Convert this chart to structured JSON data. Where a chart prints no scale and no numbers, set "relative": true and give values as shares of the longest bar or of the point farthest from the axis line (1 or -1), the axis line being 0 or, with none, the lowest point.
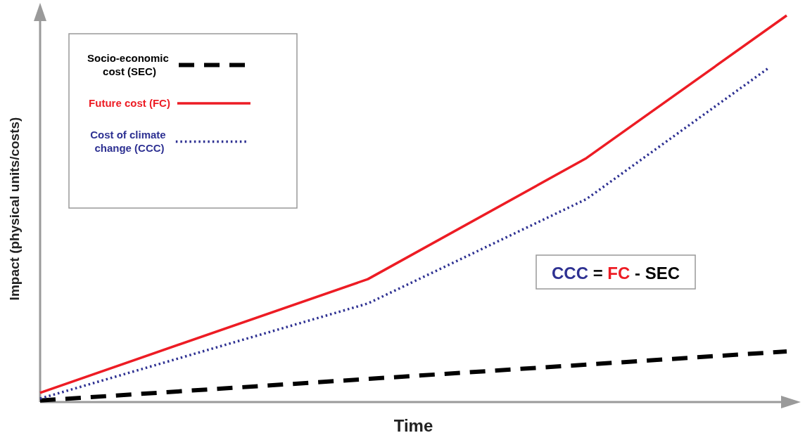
{
  "chart_data": {
    "type": "line",
    "relative": true,
    "xlabel": "Time",
    "ylabel": "Impact (physical units/costs)",
    "categories": [
      null,
      null,
      null,
      null,
      null,
      null,
      null,
      null,
      null,
      null,
      null,
      null,
      null,
      null,
      null,
      null,
      null,
      null,
      null,
      null,
      null,
      null,
      null,
      null,
      null,
      null,
      null,
      null,
      null,
      null,
      null,
      null,
      null,
      null,
      null,
      null,
      null,
      null,
      null,
      null,
      null,
      null
    ],
    "legend": "top left",
    "marker": "none",
    "series": [
      {
        "name": "Socio-economic cost (SEC)",
        "color": "#000000",
        "line_style": "dashed",
        "values": [
          0.004,
          null,
          null,
          null,
          null,
          null,
          null,
          null,
          null,
          null,
          null,
          null,
          null,
          null,
          null,
          null,
          null,
          null,
          null,
          null,
          null,
          null,
          null,
          null,
          null,
          null,
          null,
          null,
          null,
          null,
          null,
          null,
          null,
          null,
          null,
          null,
          null,
          null,
          null,
          null,
          null,
          0.131
        ]
      },
      {
        "name": "Future cost (FC)",
        "color": "#ed1c24",
        "line_style": "solid",
        "values": [
          0.024,
          null,
          null,
          null,
          null,
          null,
          null,
          null,
          null,
          null,
          null,
          null,
          null,
          null,
          null,
          null,
          null,
          null,
          0.318,
          null,
          null,
          null,
          null,
          null,
          null,
          null,
          null,
          null,
          null,
          null,
          0.631,
          null,
          null,
          null,
          null,
          null,
          null,
          null,
          null,
          null,
          null,
          1
        ]
      },
      {
        "name": "Cost of climate change (CCC)",
        "color": "#2e3192",
        "line_style": "dotted",
        "values": [
          0.009,
          null,
          null,
          null,
          null,
          null,
          null,
          null,
          null,
          null,
          null,
          null,
          null,
          null,
          null,
          null,
          null,
          null,
          0.255,
          null,
          null,
          null,
          null,
          null,
          null,
          null,
          null,
          null,
          null,
          null,
          0.525,
          null,
          null,
          null,
          null,
          null,
          null,
          null,
          null,
          null,
          0.864,
          null
        ]
      }
    ],
    "annotations": [
      "CCC = FC - SEC"
    ]
  }
}
